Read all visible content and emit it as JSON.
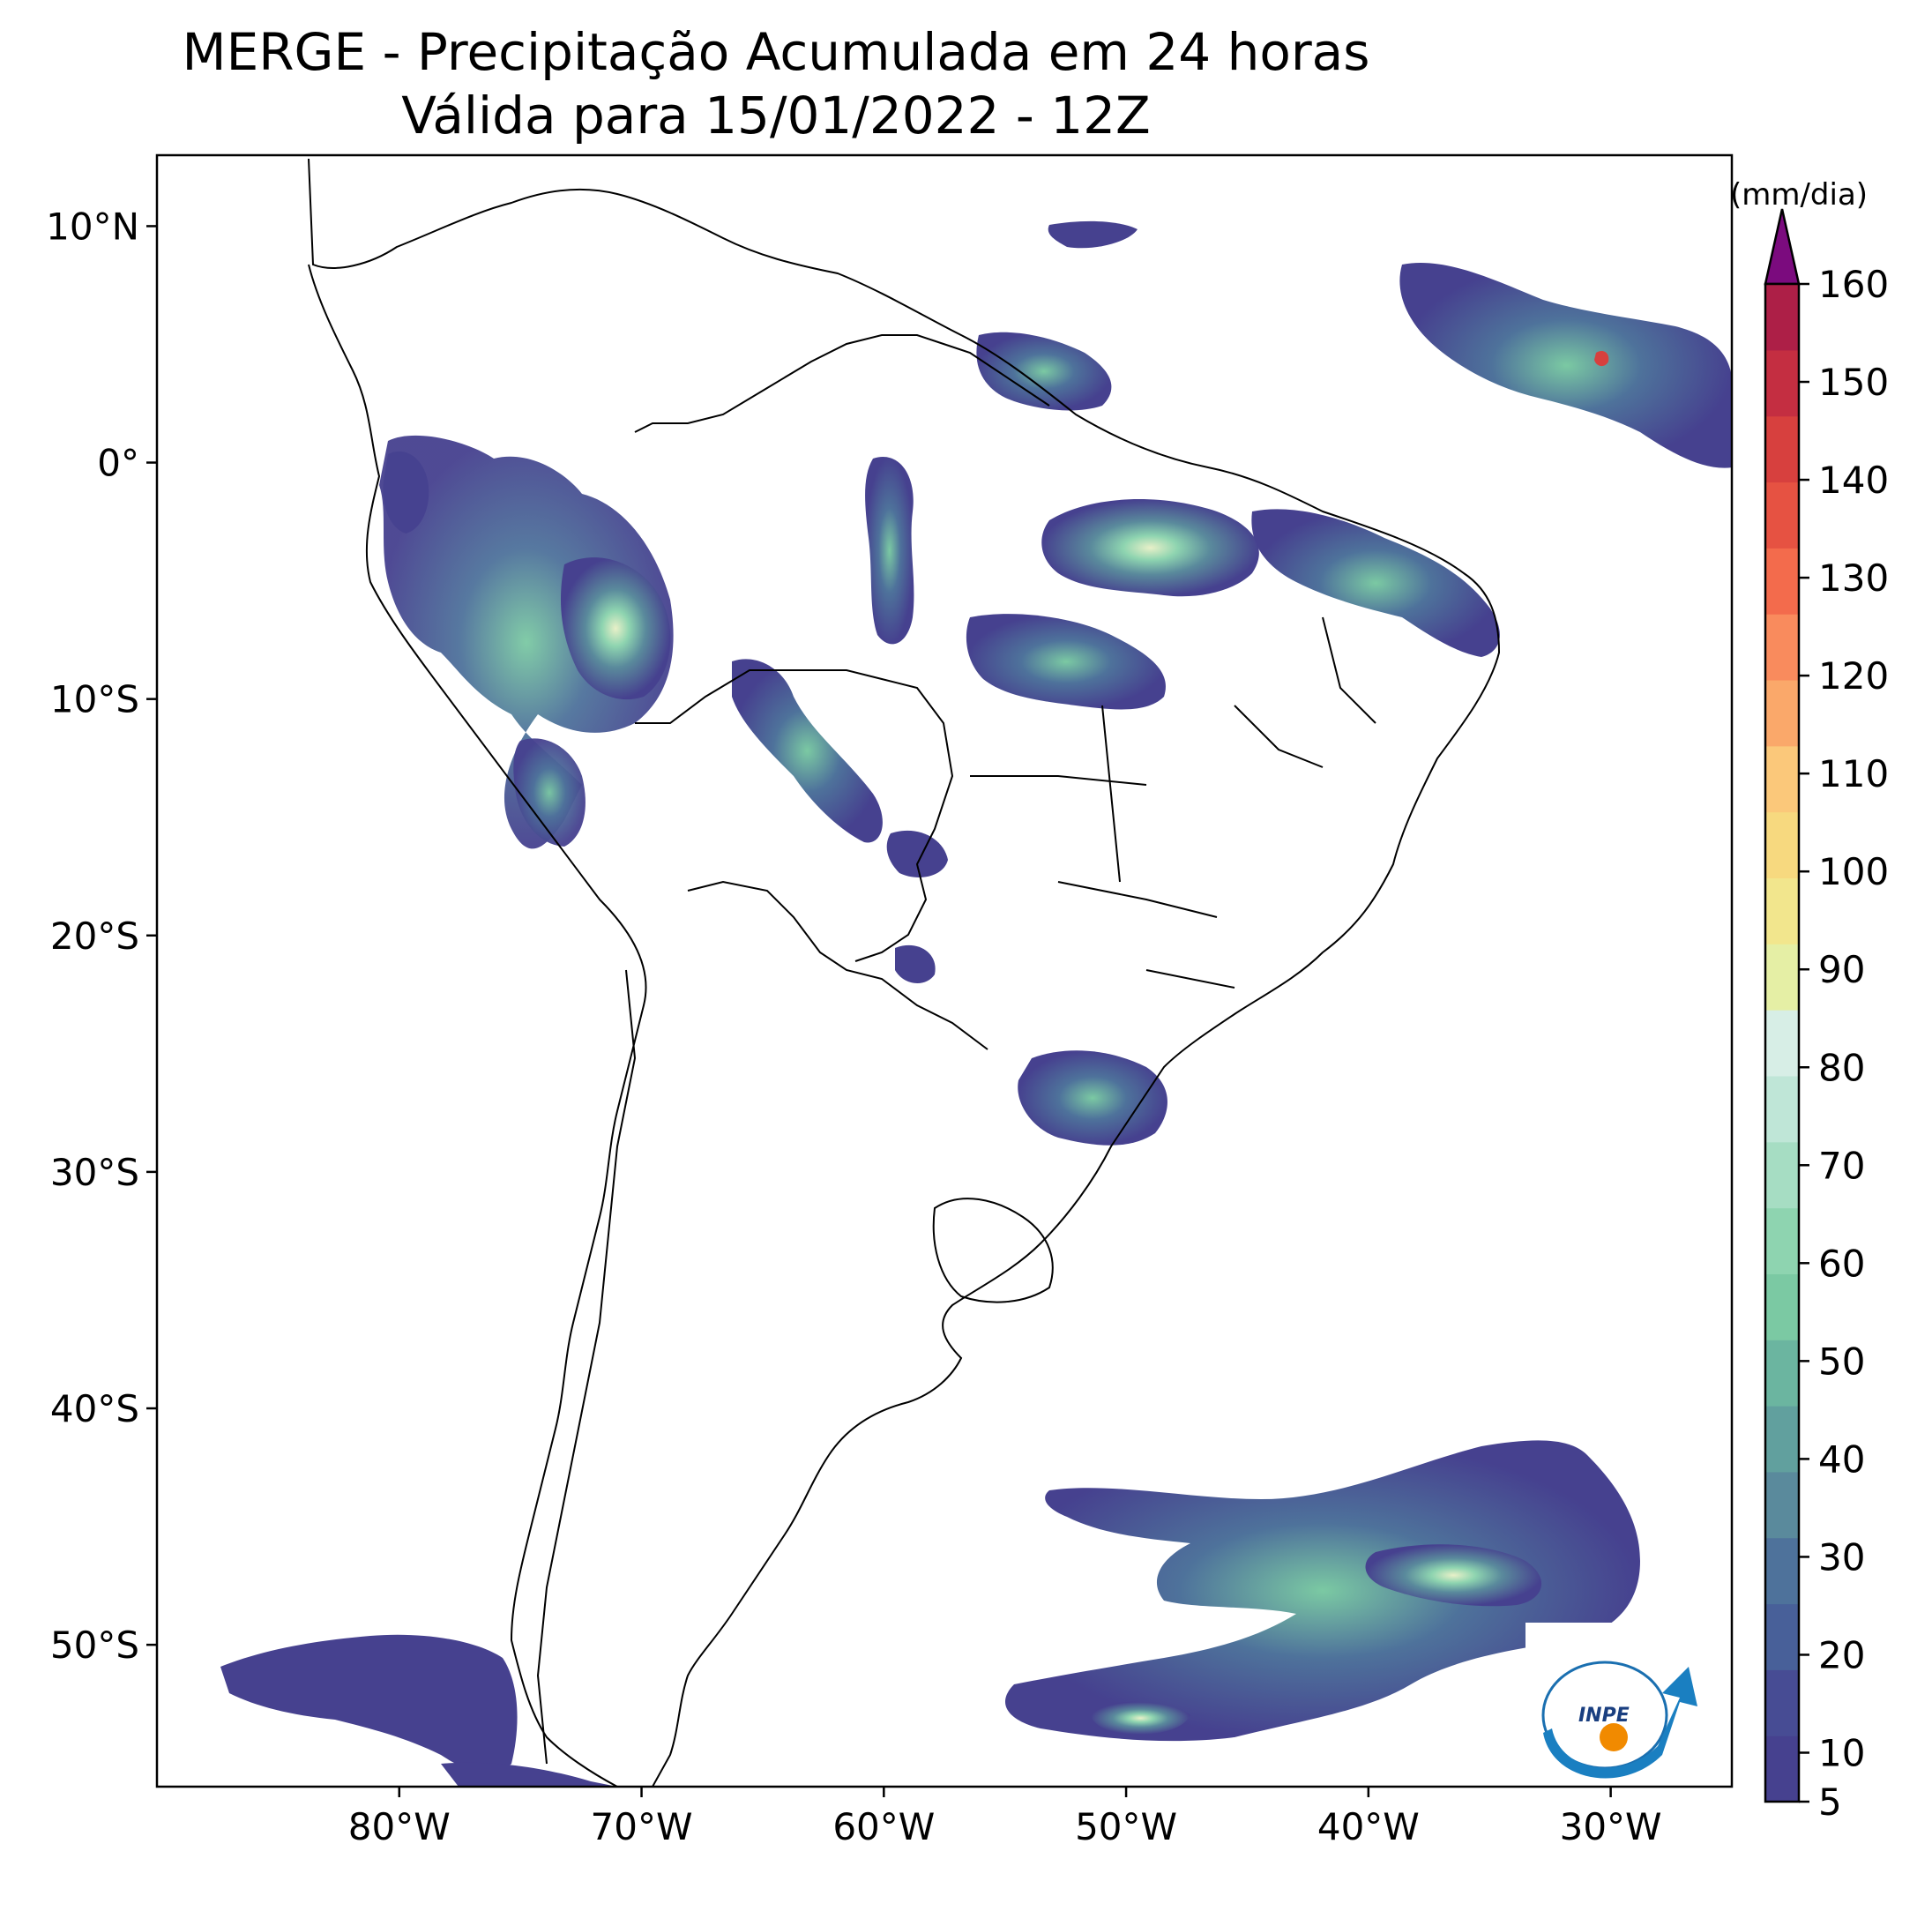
{
  "title": {
    "line1": "MERGE - Precipitação Acumulada em 24 horas",
    "line2": "Válida para 15/01/2022 - 12Z"
  },
  "map": {
    "lon_range": [
      -90,
      -25
    ],
    "lat_range": [
      -56,
      13
    ],
    "lon_ticks": [
      {
        "value": -80,
        "label": "80°W"
      },
      {
        "value": -70,
        "label": "70°W"
      },
      {
        "value": -60,
        "label": "60°W"
      },
      {
        "value": -50,
        "label": "50°W"
      },
      {
        "value": -40,
        "label": "40°W"
      },
      {
        "value": -30,
        "label": "30°W"
      }
    ],
    "lat_ticks": [
      {
        "value": 10,
        "label": "10°N"
      },
      {
        "value": 0,
        "label": "0°"
      },
      {
        "value": -10,
        "label": "10°S"
      },
      {
        "value": -20,
        "label": "20°S"
      },
      {
        "value": -30,
        "label": "30°S"
      },
      {
        "value": -40,
        "label": "40°S"
      },
      {
        "value": -50,
        "label": "50°S"
      }
    ],
    "logo_text": "INPE"
  },
  "colorbar": {
    "unit": "(mm/dia)",
    "min": 5,
    "max": 160,
    "ticks": [
      {
        "value": 160,
        "label": "160"
      },
      {
        "value": 150,
        "label": "150"
      },
      {
        "value": 140,
        "label": "140"
      },
      {
        "value": 130,
        "label": "130"
      },
      {
        "value": 120,
        "label": "120"
      },
      {
        "value": 110,
        "label": "110"
      },
      {
        "value": 100,
        "label": "100"
      },
      {
        "value": 90,
        "label": "90"
      },
      {
        "value": 80,
        "label": "80"
      },
      {
        "value": 70,
        "label": "70"
      },
      {
        "value": 60,
        "label": "60"
      },
      {
        "value": 50,
        "label": "50"
      },
      {
        "value": 40,
        "label": "40"
      },
      {
        "value": 30,
        "label": "30"
      },
      {
        "value": 20,
        "label": "20"
      },
      {
        "value": 10,
        "label": "10"
      },
      {
        "value": 5,
        "label": "5"
      }
    ],
    "extend_color": "#7b0b7e",
    "colors": [
      "#46418f",
      "#474c94",
      "#486099",
      "#4e729b",
      "#5a8a9c",
      "#61a09e",
      "#6bb5a0",
      "#7bc9a3",
      "#8ed4b0",
      "#a6ddc3",
      "#bfe6d7",
      "#d7eee6",
      "#e5efa5",
      "#f2e68d",
      "#f7d97f",
      "#fbc87a",
      "#faa86a",
      "#f98b5d",
      "#f36b4c",
      "#e65242",
      "#d7403e",
      "#c42e41",
      "#ad1f47"
    ]
  }
}
